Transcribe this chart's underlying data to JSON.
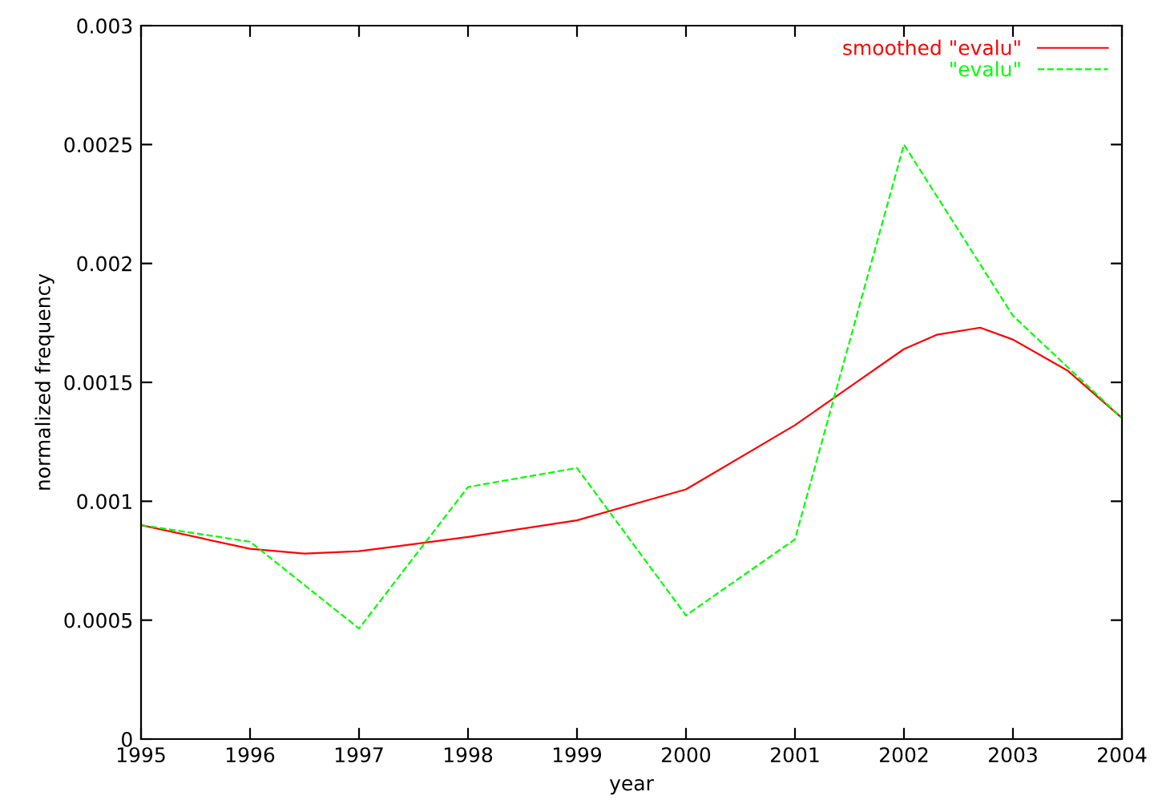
{
  "chart_data": {
    "type": "line",
    "xlabel": "year",
    "ylabel": "normalized frequency",
    "xlim": [
      1995,
      2004
    ],
    "xticks": [
      1995,
      1996,
      1997,
      1998,
      1999,
      2000,
      2001,
      2002,
      2003,
      2004
    ],
    "ylim": [
      0,
      0.003
    ],
    "yticks": [
      0,
      0.0005,
      0.001,
      0.0015,
      0.002,
      0.0025,
      0.003
    ],
    "grid": false,
    "legend": "top right",
    "line_style": "solid",
    "marker": "none",
    "series": [
      {
        "name": "smoothed \"evalu\"",
        "color": "#ff0000",
        "x": [
          1995,
          1996,
          1996.5,
          1997,
          1998,
          1999,
          2000,
          2001,
          2001.5,
          2002,
          2002.3,
          2002.7,
          2003,
          2003.5,
          2004
        ],
        "values": [
          0.0009,
          0.0008,
          0.00078,
          0.00079,
          0.00085,
          0.00092,
          0.00105,
          0.00132,
          0.00148,
          0.00164,
          0.0017,
          0.00173,
          0.00168,
          0.00155,
          0.00135
        ]
      },
      {
        "name": "\"evalu\"",
        "color": "#00ff00",
        "line_style": "dashed",
        "x": [
          1995,
          1996,
          1997,
          1998,
          1999,
          2000,
          2001,
          2002,
          2003,
          2004
        ],
        "values": [
          0.0009,
          0.00083,
          0.000465,
          0.00106,
          0.00114,
          0.00052,
          0.00084,
          0.0025,
          0.00178,
          0.00135
        ]
      }
    ]
  }
}
